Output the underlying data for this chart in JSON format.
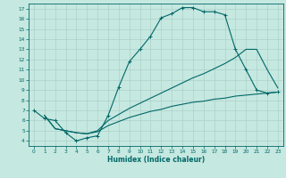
{
  "xlabel": "Humidex (Indice chaleur)",
  "bg_color": "#c5e8e0",
  "grid_color": "#aed0c8",
  "line_color": "#006868",
  "xlim": [
    -0.5,
    23.5
  ],
  "ylim": [
    3.5,
    17.5
  ],
  "xticks": [
    0,
    1,
    2,
    3,
    4,
    5,
    6,
    7,
    8,
    9,
    10,
    11,
    12,
    13,
    14,
    15,
    16,
    17,
    18,
    19,
    20,
    21,
    22,
    23
  ],
  "yticks": [
    4,
    5,
    6,
    7,
    8,
    9,
    10,
    11,
    12,
    13,
    14,
    15,
    16,
    17
  ],
  "curve1_x": [
    0,
    1,
    2,
    3,
    4,
    5,
    6,
    7,
    8,
    9,
    10,
    11,
    12,
    13,
    14,
    15,
    16,
    17,
    18,
    19,
    20,
    21,
    22,
    23
  ],
  "curve1_y": [
    7.0,
    6.2,
    6.0,
    4.8,
    4.0,
    4.3,
    4.5,
    6.5,
    9.3,
    11.8,
    13.0,
    14.3,
    16.1,
    16.5,
    17.1,
    17.1,
    16.7,
    16.7,
    16.4,
    13.0,
    11.0,
    9.0,
    8.7,
    8.8
  ],
  "curve2_x": [
    1,
    2,
    3,
    4,
    5,
    6,
    7,
    8,
    9,
    10,
    11,
    12,
    13,
    14,
    15,
    16,
    17,
    18,
    19,
    20,
    21,
    22,
    23
  ],
  "curve2_y": [
    6.5,
    5.2,
    5.0,
    4.8,
    4.7,
    4.9,
    5.5,
    5.9,
    6.3,
    6.6,
    6.9,
    7.1,
    7.4,
    7.6,
    7.8,
    7.9,
    8.1,
    8.2,
    8.4,
    8.5,
    8.6,
    8.7,
    8.8
  ],
  "curve3_x": [
    1,
    2,
    3,
    4,
    5,
    6,
    7,
    8,
    9,
    10,
    11,
    12,
    13,
    14,
    15,
    16,
    17,
    18,
    19,
    20,
    21,
    22,
    23
  ],
  "curve3_y": [
    6.5,
    5.2,
    5.0,
    4.8,
    4.7,
    5.0,
    6.0,
    6.6,
    7.2,
    7.7,
    8.2,
    8.7,
    9.2,
    9.7,
    10.2,
    10.6,
    11.1,
    11.6,
    12.2,
    13.0,
    13.0,
    11.0,
    9.2
  ]
}
